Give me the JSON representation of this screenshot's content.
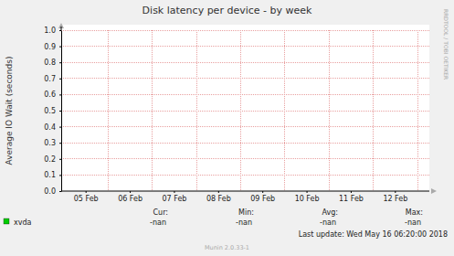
{
  "chart_data": {
    "type": "line",
    "title": "Disk latency per device - by week",
    "y_label": "Average IO Wait (seconds)",
    "categories": [
      "05 Feb",
      "06 Feb",
      "07 Feb",
      "08 Feb",
      "09 Feb",
      "10 Feb",
      "11 Feb",
      "12 Feb"
    ],
    "series": [
      {
        "name": "xvda",
        "color": "#00cc00",
        "values": [
          null,
          null,
          null,
          null,
          null,
          null,
          null,
          null
        ],
        "stats": [
          "-nan",
          "-nan",
          "-nan",
          "-nan"
        ]
      }
    ],
    "stat_labels": [
      "Cur:",
      "Min:",
      "Avg:",
      "Max:"
    ],
    "ylim": [
      0,
      1
    ],
    "yticks": [
      {
        "value": 0,
        "label": "0.0"
      },
      0.1,
      0.2,
      0.3,
      0.4,
      0.5,
      0.6,
      0.7,
      0.8,
      0.9,
      {
        "value": 1,
        "label": "1.0"
      }
    ],
    "grid": true,
    "footer": "Last update: Wed May 16 06:20:00 2018",
    "watermark": "RRDTOOL / TOBI OETIKER",
    "credit": "Munin 2.0.33-1"
  }
}
